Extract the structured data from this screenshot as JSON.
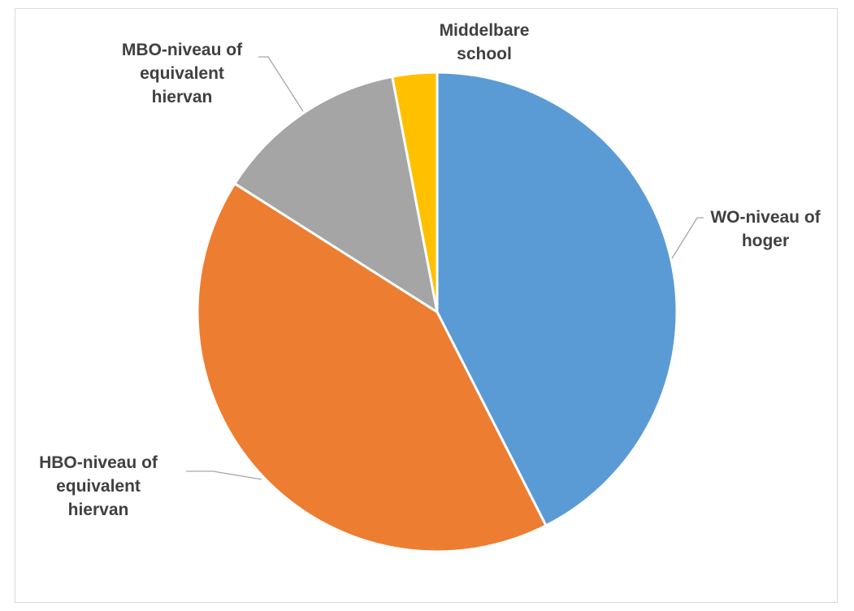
{
  "chart_data": {
    "type": "pie",
    "title": "",
    "legend": "none",
    "start_angle_deg": 0,
    "direction": "clockwise",
    "slices": [
      {
        "label_lines": [
          "WO-niveau of",
          "hoger"
        ],
        "value": 42.5,
        "color": "#5b9bd5"
      },
      {
        "label_lines": [
          "HBO-niveau of",
          "equivalent",
          "hiervan"
        ],
        "value": 41.5,
        "color": "#ed7d31"
      },
      {
        "label_lines": [
          "MBO-niveau of",
          "equivalent",
          "hiervan"
        ],
        "value": 13,
        "color": "#a5a5a5"
      },
      {
        "label_lines": [
          "Middelbare",
          "school"
        ],
        "value": 3,
        "color": "#ffc000"
      }
    ]
  }
}
